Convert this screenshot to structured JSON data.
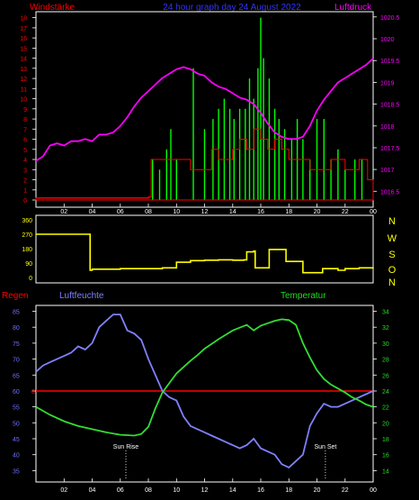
{
  "header": {
    "left_label": "Windstärke",
    "title": "24 hour graph day  24 August  2022",
    "right_label": "Luftdruck"
  },
  "panel2": {
    "compass": [
      "N",
      "W",
      "S",
      "O",
      "N"
    ]
  },
  "panel3": {
    "left_label": "Regen",
    "mid_label": "Luftfeuchte",
    "right_label": "Temperatur",
    "sunrise": "Sun Rise",
    "sunset": "Sun Set"
  },
  "colors": {
    "wind": "#ff0000",
    "gust": "#00ff00",
    "pressure": "#ff00ff",
    "direction": "#ffff00",
    "humidity": "#8080ff",
    "temperature": "#33dd33",
    "rain": "#ff0000",
    "axis_wind": "#ff0000",
    "axis_pressure": "#ff00ff",
    "axis_humidity": "#6f6fff",
    "axis_temp": "#22dd22",
    "axis_dir": "#ffff00",
    "title": "#3333ff",
    "grid": "#ffffff"
  },
  "chart_data": [
    {
      "type": "bar",
      "name": "wind",
      "x_ticks": [
        "02",
        "04",
        "06",
        "08",
        "10",
        "12",
        "14",
        "16",
        "18",
        "20",
        "22",
        "00"
      ],
      "y_ticks_left": [
        "0",
        "1",
        "2",
        "3",
        "4",
        "5",
        "6",
        "7",
        "8",
        "9",
        "10",
        "11",
        "12",
        "13",
        "14",
        "15",
        "16",
        "17",
        "18"
      ],
      "y_ticks_right": [
        "1016.5",
        "1017",
        "1017.5",
        "1018",
        "1018.5",
        "1019",
        "1019.5",
        "1020",
        "1020.5"
      ],
      "ylim_left": [
        0,
        18.5
      ],
      "ylim_right": [
        1016.3,
        1020.6
      ],
      "wind_mean_series": [
        [
          0,
          0.2
        ],
        [
          8.0,
          0.3
        ],
        [
          8.2,
          4
        ],
        [
          10.5,
          4
        ],
        [
          11.0,
          3
        ],
        [
          12.0,
          3
        ],
        [
          12.5,
          5
        ],
        [
          13.0,
          4
        ],
        [
          14.0,
          5
        ],
        [
          14.5,
          6
        ],
        [
          15.0,
          5
        ],
        [
          15.5,
          7
        ],
        [
          16.0,
          6
        ],
        [
          16.5,
          5
        ],
        [
          17.0,
          6
        ],
        [
          17.5,
          5
        ],
        [
          18.0,
          4
        ],
        [
          19.0,
          4
        ],
        [
          19.5,
          3
        ],
        [
          20.0,
          3
        ],
        [
          21.0,
          4
        ],
        [
          22.0,
          3
        ],
        [
          22.5,
          3
        ],
        [
          23.0,
          4
        ],
        [
          23.6,
          2
        ],
        [
          24.0,
          2
        ]
      ],
      "wind_gust_peaks": [
        [
          8.3,
          4
        ],
        [
          8.8,
          3
        ],
        [
          9.3,
          5
        ],
        [
          9.6,
          7
        ],
        [
          10.0,
          4
        ],
        [
          11.2,
          13
        ],
        [
          12.0,
          7
        ],
        [
          12.6,
          8
        ],
        [
          13.0,
          9
        ],
        [
          13.4,
          10
        ],
        [
          13.8,
          9
        ],
        [
          14.1,
          8
        ],
        [
          14.5,
          9
        ],
        [
          14.9,
          9
        ],
        [
          15.2,
          12
        ],
        [
          15.5,
          10
        ],
        [
          15.8,
          13
        ],
        [
          16.0,
          18
        ],
        [
          16.2,
          14
        ],
        [
          16.6,
          12
        ],
        [
          17.0,
          9
        ],
        [
          17.3,
          8
        ],
        [
          17.7,
          7
        ],
        [
          18.2,
          6
        ],
        [
          18.6,
          8
        ],
        [
          19.0,
          6
        ],
        [
          19.5,
          4
        ],
        [
          20.0,
          8
        ],
        [
          20.5,
          8
        ],
        [
          21.0,
          4
        ],
        [
          21.5,
          5
        ],
        [
          22.0,
          3
        ],
        [
          22.7,
          4
        ],
        [
          23.2,
          4
        ]
      ],
      "pressure_series": [
        [
          0,
          1017.2
        ],
        [
          0.5,
          1017.3
        ],
        [
          1.0,
          1017.55
        ],
        [
          1.5,
          1017.6
        ],
        [
          2.0,
          1017.55
        ],
        [
          2.5,
          1017.65
        ],
        [
          3.0,
          1017.65
        ],
        [
          3.5,
          1017.7
        ],
        [
          4.0,
          1017.65
        ],
        [
          4.5,
          1017.8
        ],
        [
          5.0,
          1017.8
        ],
        [
          5.5,
          1017.85
        ],
        [
          6.0,
          1018.0
        ],
        [
          6.5,
          1018.2
        ],
        [
          7.0,
          1018.45
        ],
        [
          7.5,
          1018.65
        ],
        [
          8.0,
          1018.8
        ],
        [
          8.5,
          1018.95
        ],
        [
          9.0,
          1019.1
        ],
        [
          9.5,
          1019.2
        ],
        [
          10.0,
          1019.3
        ],
        [
          10.5,
          1019.35
        ],
        [
          11.0,
          1019.3
        ],
        [
          11.5,
          1019.2
        ],
        [
          12.0,
          1019.15
        ],
        [
          12.5,
          1019.0
        ],
        [
          13.0,
          1018.9
        ],
        [
          13.5,
          1018.85
        ],
        [
          14.0,
          1018.75
        ],
        [
          14.5,
          1018.65
        ],
        [
          15.0,
          1018.6
        ],
        [
          15.5,
          1018.5
        ],
        [
          16.0,
          1018.3
        ],
        [
          16.5,
          1018.05
        ],
        [
          17.0,
          1017.85
        ],
        [
          17.5,
          1017.75
        ],
        [
          18.0,
          1017.7
        ],
        [
          18.5,
          1017.7
        ],
        [
          19.0,
          1017.75
        ],
        [
          19.5,
          1018.0
        ],
        [
          20.0,
          1018.35
        ],
        [
          20.5,
          1018.6
        ],
        [
          21.0,
          1018.8
        ],
        [
          21.5,
          1019.0
        ],
        [
          22.0,
          1019.1
        ],
        [
          22.5,
          1019.2
        ],
        [
          23.0,
          1019.3
        ],
        [
          23.5,
          1019.4
        ],
        [
          24.0,
          1019.55
        ]
      ]
    },
    {
      "type": "line",
      "name": "wind direction",
      "x_ticks": [],
      "y_ticks": [
        "0",
        "90",
        "180",
        "270",
        "360"
      ],
      "ylim": [
        0,
        360
      ],
      "direction_series": [
        [
          0,
          270
        ],
        [
          3.8,
          270
        ],
        [
          3.85,
          45
        ],
        [
          4.0,
          52
        ],
        [
          6.0,
          55
        ],
        [
          9.0,
          60
        ],
        [
          9.6,
          60
        ],
        [
          10.0,
          95
        ],
        [
          11.0,
          105
        ],
        [
          12.0,
          108
        ],
        [
          13.0,
          110
        ],
        [
          14.0,
          108
        ],
        [
          14.8,
          110
        ],
        [
          15.0,
          160
        ],
        [
          15.5,
          165
        ],
        [
          15.6,
          60
        ],
        [
          16.3,
          60
        ],
        [
          16.6,
          175
        ],
        [
          17.6,
          175
        ],
        [
          17.8,
          100
        ],
        [
          18.5,
          100
        ],
        [
          19.0,
          30
        ],
        [
          20.0,
          30
        ],
        [
          20.4,
          55
        ],
        [
          21.5,
          45
        ],
        [
          22.0,
          55
        ],
        [
          23.0,
          60
        ],
        [
          24.0,
          62
        ]
      ]
    },
    {
      "type": "line",
      "name": "humidity / temperature / rain",
      "x_ticks": [
        "02",
        "04",
        "06",
        "08",
        "10",
        "12",
        "14",
        "16",
        "18",
        "20",
        "22",
        "00"
      ],
      "y_ticks_left": [
        "35",
        "40",
        "45",
        "50",
        "55",
        "60",
        "65",
        "70",
        "75",
        "80",
        "85"
      ],
      "y_ticks_right": [
        "14",
        "16",
        "18",
        "20",
        "22",
        "24",
        "26",
        "28",
        "30",
        "32",
        "34"
      ],
      "y_tick_rain": "0",
      "ylim_left": [
        32,
        86
      ],
      "ylim_right": [
        12.8,
        34.4
      ],
      "rain_value": 0,
      "rain_level_percent": 60,
      "sunrise_hour": 6.4,
      "sunset_hour": 20.6,
      "humidity_series": [
        [
          0,
          66
        ],
        [
          0.5,
          68
        ],
        [
          1.0,
          69
        ],
        [
          1.5,
          70
        ],
        [
          2.0,
          71
        ],
        [
          2.5,
          72
        ],
        [
          3.0,
          74
        ],
        [
          3.5,
          73
        ],
        [
          4.0,
          75
        ],
        [
          4.5,
          80
        ],
        [
          5.0,
          82
        ],
        [
          5.5,
          84
        ],
        [
          6.0,
          84
        ],
        [
          6.5,
          79
        ],
        [
          7.0,
          78
        ],
        [
          7.5,
          76
        ],
        [
          8.0,
          70
        ],
        [
          8.5,
          65
        ],
        [
          9.0,
          60
        ],
        [
          9.5,
          58
        ],
        [
          10.0,
          57
        ],
        [
          10.5,
          52
        ],
        [
          11.0,
          49
        ],
        [
          11.5,
          48
        ],
        [
          12.0,
          47
        ],
        [
          12.5,
          46
        ],
        [
          13.0,
          45
        ],
        [
          13.5,
          44
        ],
        [
          14.0,
          43
        ],
        [
          14.5,
          42
        ],
        [
          15.0,
          43
        ],
        [
          15.5,
          45
        ],
        [
          16.0,
          42
        ],
        [
          16.5,
          41
        ],
        [
          17.0,
          40
        ],
        [
          17.5,
          37
        ],
        [
          18.0,
          36
        ],
        [
          18.5,
          38
        ],
        [
          19.0,
          40
        ],
        [
          19.5,
          49
        ],
        [
          20.0,
          53
        ],
        [
          20.5,
          56
        ],
        [
          21.0,
          55
        ],
        [
          21.5,
          55
        ],
        [
          22.0,
          56
        ],
        [
          22.5,
          57
        ],
        [
          23.0,
          58
        ],
        [
          23.5,
          59
        ],
        [
          24.0,
          60
        ]
      ],
      "temperature_series": [
        [
          0,
          22.0
        ],
        [
          1.0,
          21.0
        ],
        [
          2.0,
          20.2
        ],
        [
          3.0,
          19.6
        ],
        [
          4.0,
          19.2
        ],
        [
          5.0,
          18.8
        ],
        [
          6.0,
          18.5
        ],
        [
          7.0,
          18.4
        ],
        [
          7.5,
          18.6
        ],
        [
          8.0,
          19.5
        ],
        [
          8.5,
          21.8
        ],
        [
          9.0,
          23.8
        ],
        [
          9.5,
          25.0
        ],
        [
          10.0,
          26.2
        ],
        [
          10.5,
          27.0
        ],
        [
          11.0,
          27.8
        ],
        [
          11.5,
          28.5
        ],
        [
          12.0,
          29.3
        ],
        [
          13.0,
          30.5
        ],
        [
          14.0,
          31.6
        ],
        [
          15.0,
          32.3
        ],
        [
          15.5,
          31.6
        ],
        [
          16.0,
          32.2
        ],
        [
          16.5,
          32.5
        ],
        [
          17.0,
          32.8
        ],
        [
          17.5,
          33.0
        ],
        [
          18.0,
          32.9
        ],
        [
          18.5,
          32.3
        ],
        [
          19.0,
          30.0
        ],
        [
          19.5,
          28.2
        ],
        [
          20.0,
          26.6
        ],
        [
          20.5,
          25.5
        ],
        [
          21.0,
          24.8
        ],
        [
          22.0,
          23.8
        ],
        [
          22.5,
          23.2
        ],
        [
          23.0,
          22.8
        ],
        [
          23.5,
          22.3
        ],
        [
          24.0,
          22.0
        ]
      ]
    }
  ]
}
